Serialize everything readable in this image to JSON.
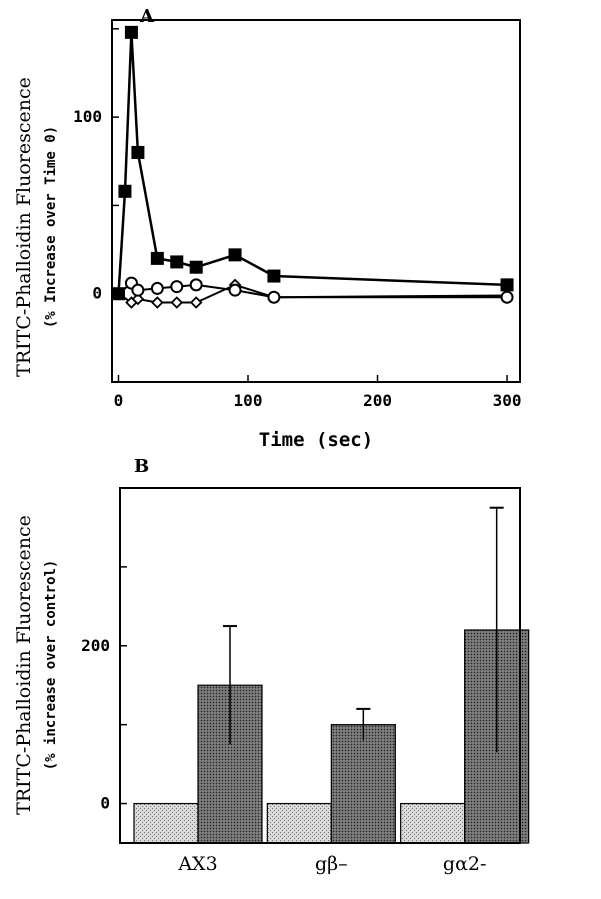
{
  "chart_data": [
    {
      "type": "line",
      "panel_label": "A",
      "xlabel": "Time (sec)",
      "ylabel": "TRITC-Phalloidin Fluorescence",
      "ylabel_sub": "(% Increase over Time 0)",
      "xlim": [
        -5,
        310
      ],
      "ylim": [
        -50,
        155
      ],
      "x_ticks": [
        0,
        100,
        200,
        300
      ],
      "y_ticks": [
        0,
        100
      ],
      "y_minor_ticks": [
        -50,
        50,
        150
      ],
      "grid": false,
      "series": [
        {
          "marker": "filled-square",
          "x": [
            0,
            5,
            10,
            15,
            30,
            45,
            60,
            90,
            120,
            300
          ],
          "y": [
            0,
            58,
            148,
            80,
            20,
            18,
            15,
            22,
            10,
            5
          ]
        },
        {
          "marker": "open-circle",
          "x": [
            0,
            10,
            15,
            30,
            45,
            60,
            90,
            120,
            300
          ],
          "y": [
            0,
            6,
            2,
            3,
            4,
            5,
            2,
            -2,
            -2
          ]
        },
        {
          "marker": "open-diamond",
          "x": [
            0,
            10,
            15,
            30,
            45,
            60,
            90,
            120,
            300
          ],
          "y": [
            0,
            -5,
            -3,
            -5,
            -5,
            -5,
            5,
            -2,
            -1
          ]
        }
      ]
    },
    {
      "type": "bar",
      "panel_label": "B",
      "ylabel": "TRITC-Phalloidin Fluorescence",
      "ylabel_sub": "(% increase over control)",
      "categories": [
        "AX3",
        "gβ–",
        "gα2-"
      ],
      "ylim": [
        -50,
        400
      ],
      "y_ticks": [
        0,
        200
      ],
      "y_minor_ticks": [
        100,
        300
      ],
      "grid": false,
      "series": [
        {
          "pattern": "light-stipple",
          "values": [
            0,
            0,
            0
          ]
        },
        {
          "pattern": "dark-stipple",
          "values": [
            150,
            100,
            220
          ],
          "errors": [
            75,
            20,
            155
          ]
        }
      ]
    }
  ]
}
